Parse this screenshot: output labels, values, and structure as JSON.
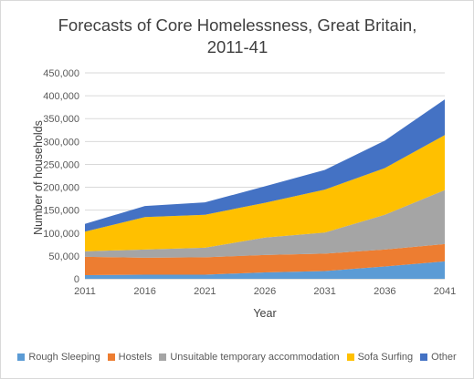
{
  "chart_data": {
    "type": "area",
    "stacked": true,
    "title_lines": [
      "Forecasts of Core Homelessness, Great Britain,",
      "2011-41"
    ],
    "xlabel": "Year",
    "ylabel": "Number of households",
    "x": [
      "2011",
      "2016",
      "2021",
      "2026",
      "2031",
      "2036",
      "2041"
    ],
    "ylim": [
      0,
      450000
    ],
    "y_ticks": [
      "0",
      "50,000",
      "100,000",
      "150,000",
      "200,000",
      "250,000",
      "300,000",
      "350,000",
      "400,000",
      "450,000"
    ],
    "gridlines": true,
    "legend_position": "bottom",
    "series": [
      {
        "name": "Rough Sleeping",
        "color": "#5b9bd5",
        "values": [
          8000,
          9000,
          9000,
          14000,
          17000,
          27000,
          38000
        ]
      },
      {
        "name": "Hostels",
        "color": "#ed7d31",
        "values": [
          40000,
          37000,
          38000,
          38000,
          38000,
          37000,
          38000
        ]
      },
      {
        "name": "Unsuitable temporary accommodation",
        "color": "#a5a5a5",
        "values": [
          12000,
          18000,
          21000,
          38000,
          46000,
          76000,
          118000
        ]
      },
      {
        "name": "Sofa Surfing",
        "color": "#ffc000",
        "values": [
          43000,
          71000,
          72000,
          76000,
          94000,
          102000,
          120000
        ]
      },
      {
        "name": "Other",
        "color": "#4472c4",
        "values": [
          17000,
          24000,
          27000,
          36000,
          43000,
          60000,
          78000
        ]
      }
    ]
  }
}
